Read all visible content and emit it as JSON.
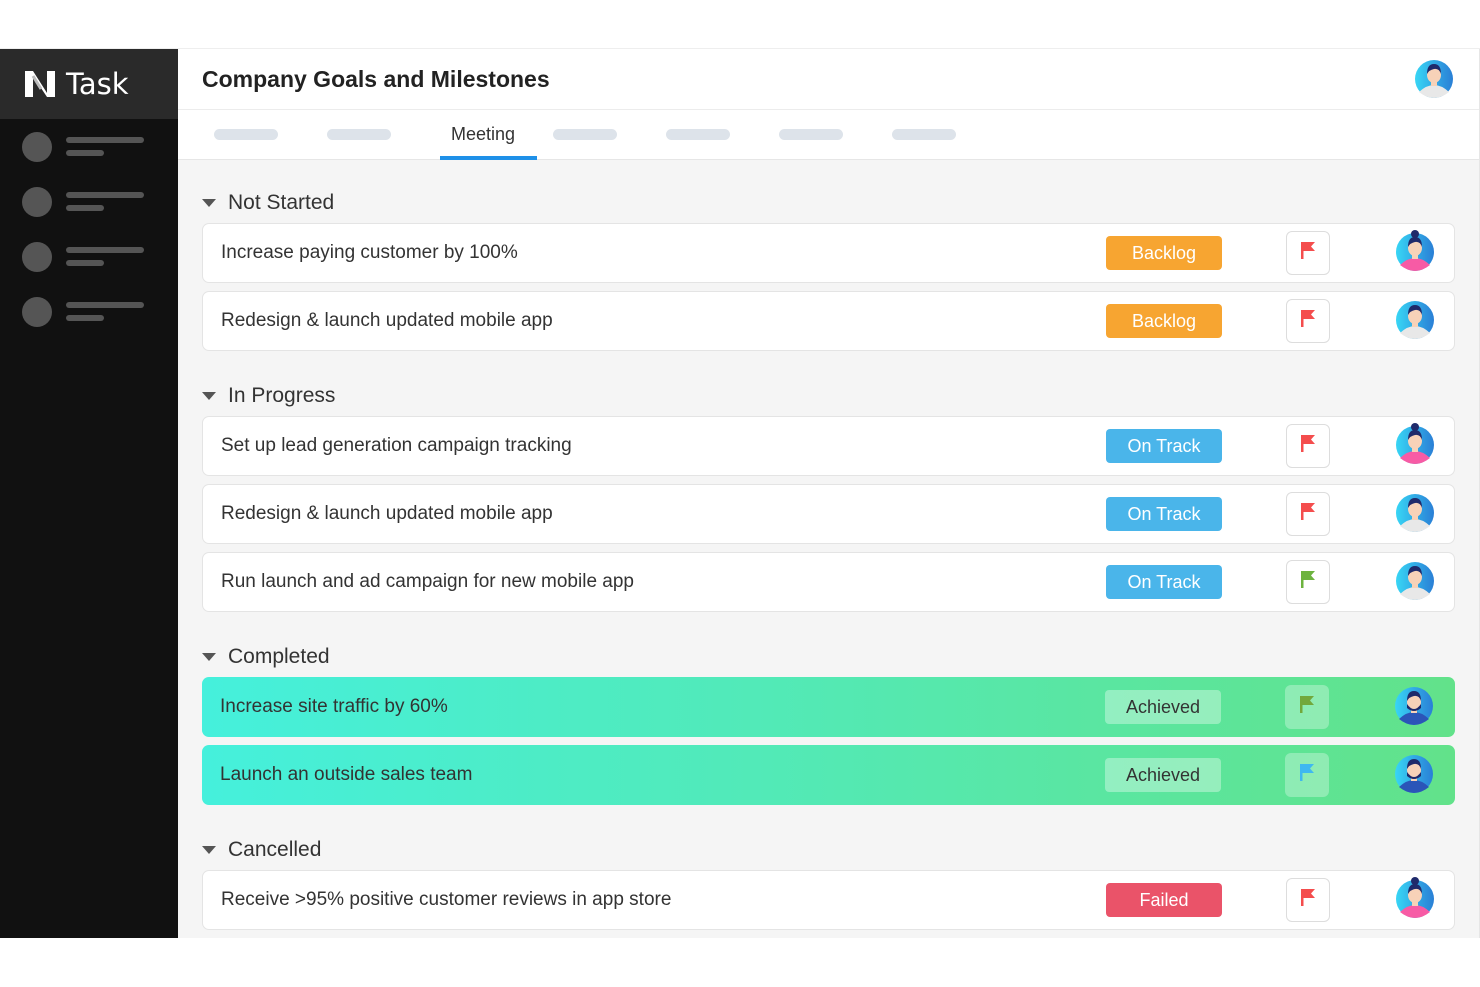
{
  "app": {
    "logo_text": "Task"
  },
  "header": {
    "title": "Company Goals and Milestones"
  },
  "tabs": {
    "active_label": "Meeting"
  },
  "colors": {
    "backlog": "#f7a531",
    "on_track": "#4ab5ea",
    "achieved": "#a2f2c2",
    "failed": "#ea5369",
    "accent": "#1e90e8"
  },
  "sections": [
    {
      "title": "Not Started",
      "rows": [
        {
          "text": "Increase paying customer by 100%",
          "status": "Backlog",
          "status_color": "#f7a531",
          "flag_color": "#f44d4d",
          "avatar": "woman"
        },
        {
          "text": "Redesign & launch updated mobile app",
          "status": "Backlog",
          "status_color": "#f7a531",
          "flag_color": "#f44d4d",
          "avatar": "man"
        }
      ]
    },
    {
      "title": "In Progress",
      "rows": [
        {
          "text": "Set up lead generation campaign tracking",
          "status": "On Track",
          "status_color": "#4ab5ea",
          "flag_color": "#f44d4d",
          "avatar": "woman"
        },
        {
          "text": "Redesign & launch updated mobile app",
          "status": "On Track",
          "status_color": "#4ab5ea",
          "flag_color": "#f44d4d",
          "avatar": "man"
        },
        {
          "text": "Run launch and ad campaign for new mobile app",
          "status": "On Track",
          "status_color": "#4ab5ea",
          "flag_color": "#6db33f",
          "avatar": "man"
        }
      ]
    },
    {
      "title": "Completed",
      "done": true,
      "rows": [
        {
          "text": "Increase site traffic by 60%",
          "status": "Achieved",
          "status_color": "#a2f2c2",
          "flag_color": "#72a83c",
          "avatar": "bearded-man"
        },
        {
          "text": "Launch an outside sales team",
          "status": "Achieved",
          "status_color": "#a2f2c2",
          "flag_color": "#3fb8f0",
          "avatar": "bearded-man"
        }
      ]
    },
    {
      "title": "Cancelled",
      "rows": [
        {
          "text": "Receive >95% positive customer reviews in app store",
          "status": "Failed",
          "status_color": "#ea5369",
          "flag_color": "#f44d4d",
          "avatar": "woman"
        }
      ]
    }
  ]
}
